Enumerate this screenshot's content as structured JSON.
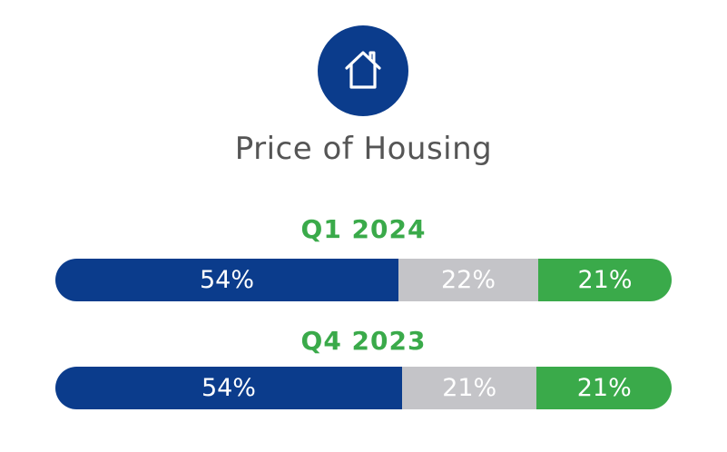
{
  "title": "Price of Housing",
  "icon": "house-icon",
  "colors": {
    "icon_background": "#0b3c8c",
    "period_label": "#3aaa4a",
    "title_text": "#555555"
  },
  "chart_data": {
    "type": "bar",
    "orientation": "horizontal-stacked",
    "title": "Price of Housing",
    "categories": [
      "Q1 2024",
      "Q4 2023"
    ],
    "series": [
      {
        "color": "#0b3c8c",
        "values": [
          54,
          54
        ],
        "labels": [
          "54%",
          "54%"
        ]
      },
      {
        "color": "#c4c4c8",
        "values": [
          22,
          21
        ],
        "labels": [
          "22%",
          "21%"
        ]
      },
      {
        "color": "#3aaa4a",
        "values": [
          21,
          21
        ],
        "labels": [
          "21%",
          "21%"
        ]
      }
    ],
    "unit": "%"
  }
}
